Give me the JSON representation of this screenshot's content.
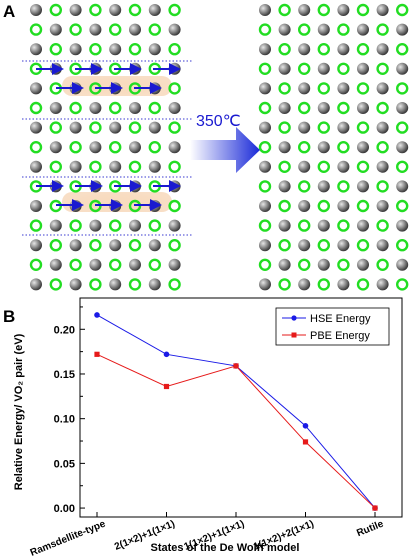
{
  "figure": {
    "panel_a_label": "A",
    "panel_b_label": "B",
    "transition_label": "350℃",
    "colors": {
      "atom_gray": "#8a8a8a",
      "atom_ring": "#22dd22",
      "arrow_blue": "#1a1ad0",
      "dotted_line": "#3a3ad0",
      "highlight": "#f4c9a0"
    }
  },
  "chart_data": {
    "type": "line",
    "categories": [
      "Ramsdellite-type",
      "2(1×2)+1(1×1)",
      "1(1×2)+1(1×1)",
      "1(1×2)+2(1×1)",
      "Rutile"
    ],
    "series": [
      {
        "name": "HSE Energy",
        "color": "#1a1ae6",
        "marker": "circle",
        "values": [
          0.216,
          0.172,
          0.159,
          0.092,
          0.0
        ]
      },
      {
        "name": "PBE Energy",
        "color": "#e61a1a",
        "marker": "square",
        "values": [
          0.172,
          0.136,
          0.159,
          0.074,
          0.0
        ]
      }
    ],
    "xlabel": "States of the De Wolff model",
    "ylabel": "Relative Energy/ VO₂ pair (eV)",
    "ylim": [
      -0.01,
      0.235
    ],
    "yticks": [
      "0.00",
      "0.05",
      "0.10",
      "0.15",
      "0.20"
    ],
    "ytick_values": [
      0,
      0.05,
      0.1,
      0.15,
      0.2
    ],
    "legend_position": "top-right"
  }
}
